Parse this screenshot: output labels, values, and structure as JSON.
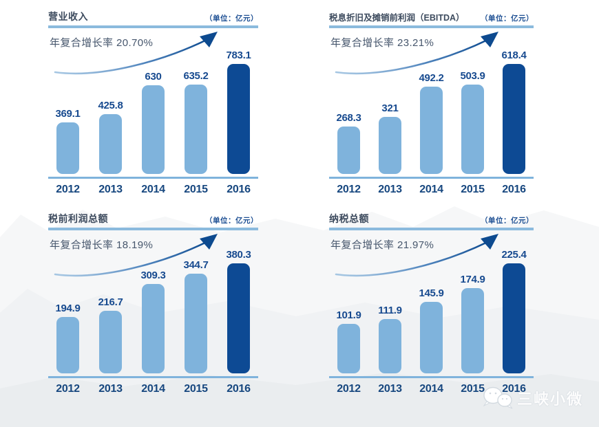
{
  "colors": {
    "bar_default": "#7fb3dc",
    "bar_highlight": "#0d4a94",
    "accent_rule": "#8bbadd",
    "axis_line": "#7fb3dc",
    "value_text": "#174a8f",
    "title_text": "#3d4b5e",
    "arrow_dark": "#0d4a8f"
  },
  "watermark": {
    "label": "三峡小微",
    "icon": "wechat-bubbles-icon"
  },
  "chart_data": [
    {
      "type": "bar",
      "title": "营业收入",
      "unit": "（单位：亿元）",
      "cagr_label": "年复合增长率 20.70%",
      "categories": [
        "2012",
        "2013",
        "2014",
        "2015",
        "2016"
      ],
      "values": [
        369.1,
        425.8,
        630,
        635.2,
        783.1
      ],
      "highlight_index": 4,
      "grid": false,
      "legend": "none"
    },
    {
      "type": "bar",
      "title": "税息折旧及摊销前利润（EBITDA）",
      "unit": "（单位：亿元）",
      "cagr_label": "年复合增长率 23.21%",
      "categories": [
        "2012",
        "2013",
        "2014",
        "2015",
        "2016"
      ],
      "values": [
        268.3,
        321,
        492.2,
        503.9,
        618.4
      ],
      "highlight_index": 4,
      "grid": false,
      "legend": "none"
    },
    {
      "type": "bar",
      "title": "税前利润总额",
      "unit": "（单位：亿元）",
      "cagr_label": "年复合增长率 18.19%",
      "categories": [
        "2012",
        "2013",
        "2014",
        "2015",
        "2016"
      ],
      "values": [
        194.9,
        216.7,
        309.3,
        344.7,
        380.3
      ],
      "highlight_index": 4,
      "grid": false,
      "legend": "none"
    },
    {
      "type": "bar",
      "title": "纳税总额",
      "unit": "（单位：亿元）",
      "cagr_label": "年复合增长率 21.97%",
      "categories": [
        "2012",
        "2013",
        "2014",
        "2015",
        "2016"
      ],
      "values": [
        101.9,
        111.9,
        145.9,
        174.9,
        225.4
      ],
      "highlight_index": 4,
      "grid": false,
      "legend": "none"
    }
  ]
}
